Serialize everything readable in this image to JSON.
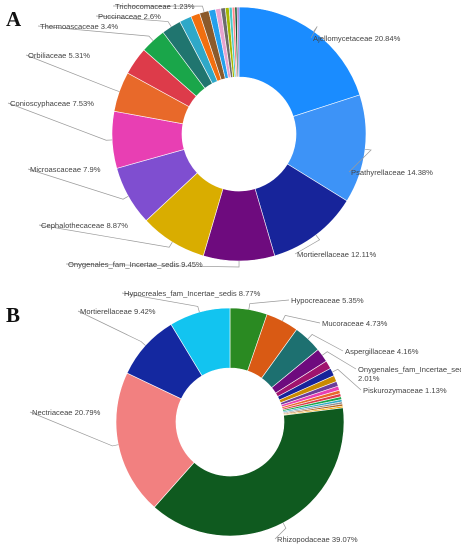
{
  "chart_data": [
    {
      "type": "pie",
      "panel_label": "A",
      "slices": [
        {
          "label": "Ajellomycetaceae 20.84%",
          "value": 20.84,
          "color": "#1a8cff"
        },
        {
          "label": "Psathyrellaceae 14.38%",
          "value": 14.38,
          "color": "#3d93f7"
        },
        {
          "label": "Mortierellaceae 12.11%",
          "value": 12.11,
          "color": "#17249a"
        },
        {
          "label": "Onygenales_fam_Incertae_sedis 9.45%",
          "value": 9.45,
          "color": "#6e0b7e"
        },
        {
          "label": "Cephalothecaceae 8.87%",
          "value": 8.87,
          "color": "#d9ad00"
        },
        {
          "label": "Microascaceae 7.9%",
          "value": 7.9,
          "color": "#7f4ed0"
        },
        {
          "label": "Conioscyphaceae 7.53%",
          "value": 7.53,
          "color": "#e83fb3"
        },
        {
          "label": "Orbiliaceae 5.31%",
          "value": 5.31,
          "color": "#e8692a"
        },
        {
          "label": "",
          "value": 3.7,
          "color": "#dd3b4a"
        },
        {
          "label": "Thermoascaceae 3.4%",
          "value": 3.4,
          "color": "#1aa64a"
        },
        {
          "label": "Puccinaceae 2.6%",
          "value": 2.6,
          "color": "#20756f"
        },
        {
          "label": "",
          "value": 1.6,
          "color": "#2fa8c8"
        },
        {
          "label": "",
          "value": 1.2,
          "color": "#f26f0f"
        },
        {
          "label": "Trichocomaceae 1.23%",
          "value": 1.23,
          "color": "#8b5a2b"
        },
        {
          "label": "",
          "value": 0.9,
          "color": "#24a0ed"
        },
        {
          "label": "",
          "value": 0.7,
          "color": "#e8a4d0"
        },
        {
          "label": "",
          "value": 0.6,
          "color": "#6b6b6b"
        },
        {
          "label": "",
          "value": 0.5,
          "color": "#a8b800"
        },
        {
          "label": "",
          "value": 0.4,
          "color": "#4bc8c8"
        },
        {
          "label": "",
          "value": 0.35,
          "color": "#ff8888"
        },
        {
          "label": "",
          "value": 0.3,
          "color": "#145a2e"
        },
        {
          "label": "",
          "value": 0.25,
          "color": "#9467bd"
        }
      ]
    },
    {
      "type": "pie",
      "panel_label": "B",
      "slices": [
        {
          "label": "Hypocreaceae 5.35%",
          "value": 5.35,
          "color": "#2a8a22"
        },
        {
          "label": "Mucoraceae 4.73%",
          "value": 4.73,
          "color": "#d95a14"
        },
        {
          "label": "Aspergillaceae 4.16%",
          "value": 4.16,
          "color": "#1d7070"
        },
        {
          "label": "Onygenales_fam_Incertae_sedis 2.01%",
          "value": 2.01,
          "color": "#6e0b7e"
        },
        {
          "label": "",
          "value": 1.2,
          "color": "#a0136e"
        },
        {
          "label": "Piskurozymaceae 1.13%",
          "value": 1.13,
          "color": "#17249a"
        },
        {
          "label": "",
          "value": 0.9,
          "color": "#c98a00"
        },
        {
          "label": "",
          "value": 0.7,
          "color": "#6a3d9a"
        },
        {
          "label": "",
          "value": 0.6,
          "color": "#e83fb3"
        },
        {
          "label": "",
          "value": 0.5,
          "color": "#e8692a"
        },
        {
          "label": "",
          "value": 0.45,
          "color": "#dd3b4a"
        },
        {
          "label": "",
          "value": 0.4,
          "color": "#1aa64a"
        },
        {
          "label": "",
          "value": 0.35,
          "color": "#2fa8c8"
        },
        {
          "label": "",
          "value": 0.3,
          "color": "#8c8c8c"
        },
        {
          "label": "",
          "value": 0.3,
          "color": "#b5651d"
        },
        {
          "label": "",
          "value": 0.26,
          "color": "#f2a900"
        },
        {
          "label": "Rhizopodaceae 39.07%",
          "value": 39.07,
          "color": "#0f5a1f"
        },
        {
          "label": "Nectriaceae 20.79%",
          "value": 20.79,
          "color": "#f28080"
        },
        {
          "label": "Mortierellaceae 9.42%",
          "value": 9.42,
          "color": "#1428a0"
        },
        {
          "label": "Hypocreales_fam_Incertae_sedis 8.77%",
          "value": 8.77,
          "color": "#12c4f0"
        }
      ]
    }
  ]
}
